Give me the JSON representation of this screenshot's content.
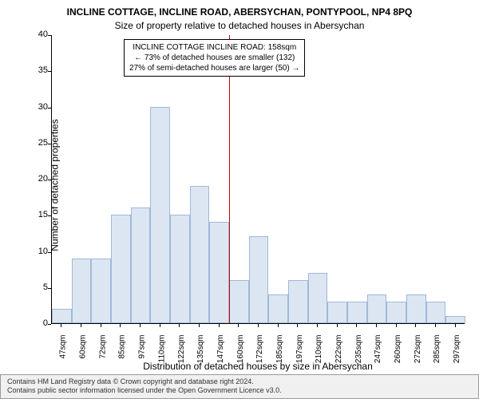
{
  "chart": {
    "type": "histogram",
    "title_main": "INCLINE COTTAGE, INCLINE ROAD, ABERSYCHAN, PONTYPOOL, NP4 8PQ",
    "title_sub": "Size of property relative to detached houses in Abersychan",
    "ylabel": "Number of detached properties",
    "xlabel": "Distribution of detached houses by size in Abersychan",
    "ylim": [
      0,
      40
    ],
    "ytick_step": 5,
    "yticks": [
      0,
      5,
      10,
      15,
      20,
      25,
      30,
      35,
      40
    ],
    "xticks": [
      "47sqm",
      "60sqm",
      "72sqm",
      "85sqm",
      "97sqm",
      "110sqm",
      "122sqm",
      "135sqm",
      "147sqm",
      "160sqm",
      "172sqm",
      "185sqm",
      "197sqm",
      "210sqm",
      "222sqm",
      "235sqm",
      "247sqm",
      "260sqm",
      "272sqm",
      "285sqm",
      "297sqm"
    ],
    "bar_values": [
      2,
      9,
      9,
      15,
      16,
      30,
      15,
      19,
      14,
      6,
      12,
      4,
      6,
      7,
      3,
      3,
      4,
      3,
      4,
      3,
      1
    ],
    "bar_fill": "#dce6f2",
    "bar_border": "#a0b8d8",
    "background": "#ffffff",
    "marker_index": 9,
    "marker_color": "#cc0000",
    "annot": {
      "line1": "INCLINE COTTAGE INCLINE ROAD: 158sqm",
      "line2": "← 73% of detached houses are smaller (132)",
      "line3": "27% of semi-detached houses are larger (50) →"
    },
    "footer": {
      "line1": "Contains HM Land Registry data © Crown copyright and database right 2024.",
      "line2": "Contains public sector information licensed under the Open Government Licence v3.0."
    },
    "title_fontsize": 12,
    "label_fontsize": 12,
    "tick_fontsize": 10
  }
}
